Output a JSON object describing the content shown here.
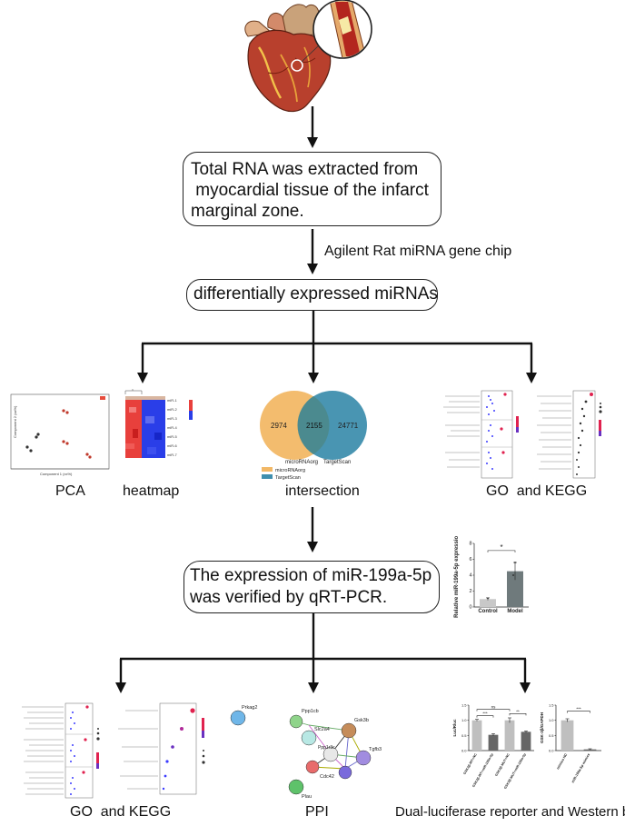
{
  "steps": {
    "extraction_lines": [
      "Total RNA was extracted from",
      " myocardial tissue of the infarct",
      "marginal zone."
    ],
    "chip": "Agilent Rat miRNA gene chip",
    "dem": "differentially expressed miRNAs",
    "qpcr_lines": [
      "The expression of miR-199a-5p",
      "was verified by qRT-PCR."
    ]
  },
  "panels": {
    "pca": "PCA",
    "heatmap": "heatmap",
    "intersection": "intersection",
    "go_kegg_top": "GO  and KEGG",
    "go_kegg_bottom": "GO  and KEGG",
    "ppi": "PPI",
    "luc_wb": "Dual-luciferase reporter and Western blot"
  },
  "venn": {
    "left_count": "2974",
    "overlap_count": "2155",
    "right_count": "24771",
    "left_label": "microRNAorg",
    "right_label": "TargetScan",
    "left_color": "#f2b866",
    "right_color": "#3f8fae"
  },
  "ppi_nodes": [
    "Prkag2",
    "Ppp1cb",
    "Slc2a4",
    "Gsk3b",
    "Tgfb3",
    "Ppp1r3c",
    "Cdc42",
    "Nos3",
    "Plau",
    "Prl",
    "Insr"
  ],
  "chart_data": [
    {
      "type": "bar",
      "title": "",
      "categories": [
        "Control",
        "Model"
      ],
      "values": [
        1.0,
        4.5
      ],
      "errors": [
        0.15,
        1.1
      ],
      "xlabel": "",
      "ylabel": "Relative miR-199a-5p expression",
      "ylim": [
        0,
        8
      ],
      "yticks": [
        "0",
        "2",
        "4",
        "6",
        "8"
      ],
      "significance": "*",
      "colors": [
        "#c8c8c8",
        "#6f7a7c"
      ]
    },
    {
      "type": "bar",
      "title": "",
      "categories": [
        "GSK3β-WT+NC",
        "GSK3β-WT+miR-199a-5p",
        "GSK3β-MUT+NC",
        "GSK3β-MUT+miR-199a-5p"
      ],
      "values": [
        1.0,
        0.52,
        1.0,
        0.62
      ],
      "errors": [
        0.03,
        0.04,
        0.08,
        0.03
      ],
      "xlabel": "",
      "ylabel": "Luc/Rluc",
      "ylim": [
        0,
        1.5
      ],
      "yticks": [
        "0.0",
        "0.5",
        "1.0",
        "1.5"
      ],
      "significance": [
        "***",
        "ns",
        "**"
      ],
      "colors": [
        "#bfbfbf",
        "#666666",
        "#bfbfbf",
        "#666666"
      ]
    },
    {
      "type": "bar",
      "title": "",
      "categories": [
        "mimics NC",
        "miR-199a-5p mimics"
      ],
      "values": [
        1.0,
        0.04
      ],
      "errors": [
        0.05,
        0.02
      ],
      "xlabel": "",
      "ylabel": "GSK-3β/GAPDH",
      "ylim": [
        0,
        1.5
      ],
      "yticks": [
        "0.0",
        "0.5",
        "1.0",
        "1.5"
      ],
      "significance": "***",
      "colors": [
        "#bfbfbf",
        "#666666"
      ]
    }
  ]
}
